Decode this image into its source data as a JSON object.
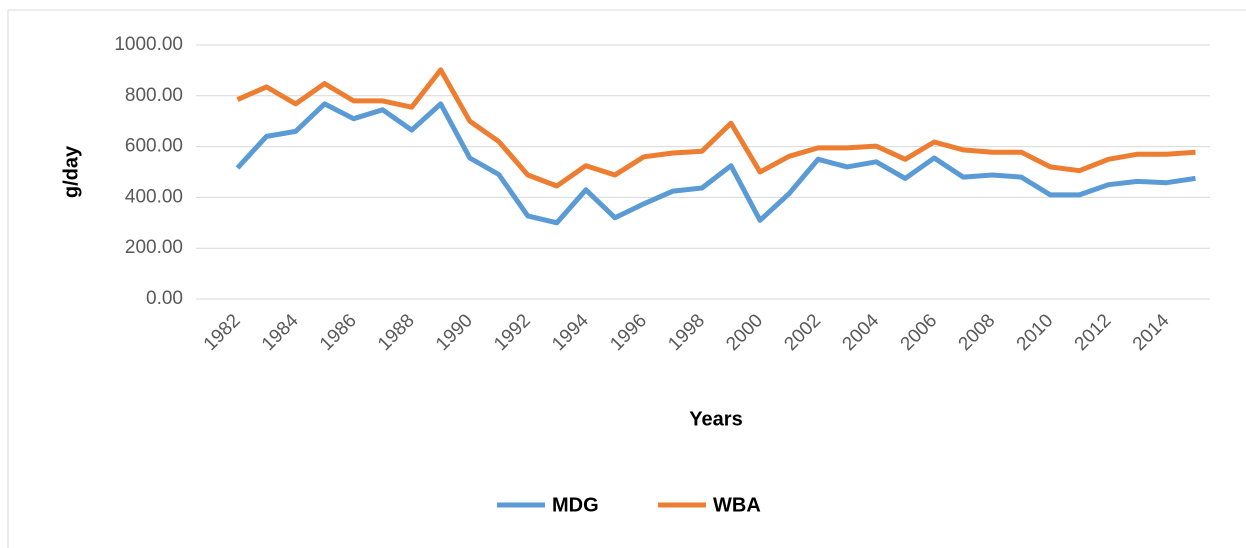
{
  "chart_data": {
    "type": "line",
    "x_label": "Years",
    "y_label": "g/day",
    "categories": [
      "1982",
      null,
      "1984",
      null,
      "1986",
      null,
      "1988",
      null,
      "1990",
      null,
      "1992",
      null,
      "1994",
      null,
      "1996",
      null,
      "1998",
      null,
      "2000",
      null,
      "2002",
      null,
      "2004",
      null,
      "2006",
      null,
      "2008",
      null,
      "2010",
      null,
      "2012",
      null,
      "2014",
      null
    ],
    "series": [
      {
        "name": "MDG",
        "color": "#5b9bd5",
        "values": [
          516,
          640,
          660,
          768,
          710,
          745,
          665,
          768,
          555,
          490,
          327,
          300,
          430,
          320,
          375,
          425,
          437,
          525,
          310,
          415,
          550,
          520,
          540,
          475,
          555,
          480,
          488,
          480,
          410,
          410,
          450,
          463,
          458,
          475
        ]
      },
      {
        "name": "WBA",
        "color": "#ed7d31",
        "values": [
          785,
          835,
          768,
          848,
          780,
          780,
          755,
          902,
          700,
          620,
          488,
          445,
          525,
          488,
          560,
          575,
          582,
          692,
          500,
          562,
          595,
          595,
          602,
          550,
          618,
          587,
          578,
          578,
          520,
          505,
          550,
          570,
          570,
          578
        ]
      }
    ],
    "ylim": [
      0,
      1000
    ],
    "yticks": [
      {
        "value": 0,
        "label": "0.00"
      },
      {
        "value": 200,
        "label": "200.00"
      },
      {
        "value": 400,
        "label": "400.00"
      },
      {
        "value": 600,
        "label": "600.00"
      },
      {
        "value": 800,
        "label": "800.00"
      },
      {
        "value": 1000,
        "label": "1000.00"
      }
    ],
    "grid": true,
    "legend": "bottom"
  }
}
